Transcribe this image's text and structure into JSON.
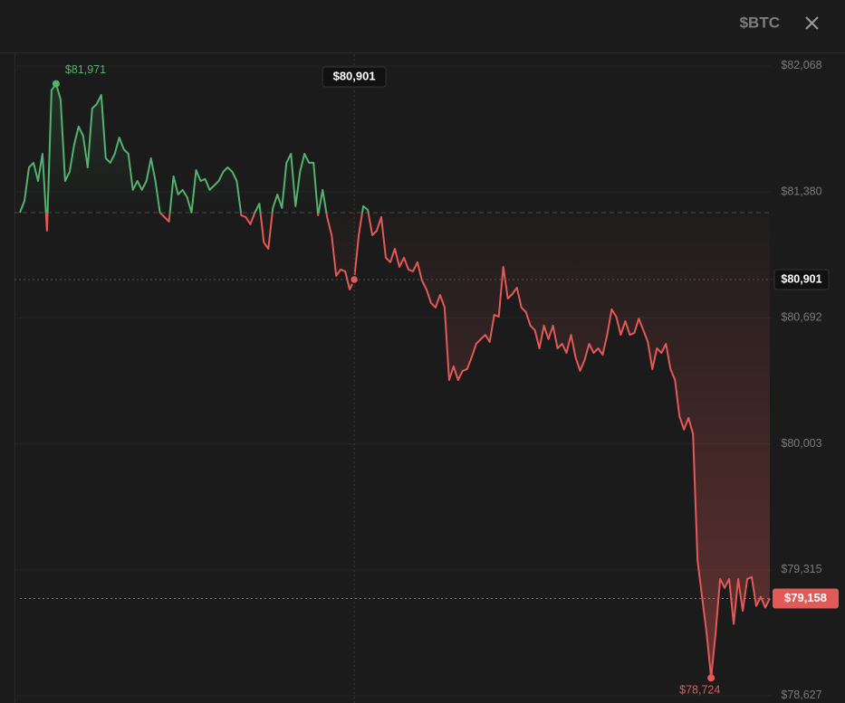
{
  "chart_data": {
    "type": "line",
    "title": "$BTC",
    "values": [
      81267,
      81331,
      81514,
      81539,
      81440,
      81588,
      81168,
      81935,
      81971,
      81885,
      81440,
      81490,
      81638,
      81737,
      81687,
      81514,
      81836,
      81860,
      81910,
      81564,
      81539,
      81588,
      81677,
      81613,
      81588,
      81391,
      81440,
      81391,
      81440,
      81564,
      81440,
      81267,
      81242,
      81218,
      81465,
      81366,
      81391,
      81351,
      81267,
      81499,
      81440,
      81450,
      81391,
      81415,
      81440,
      81490,
      81514,
      81490,
      81440,
      81252,
      81242,
      81203,
      81267,
      81316,
      81104,
      81069,
      81292,
      81366,
      81292,
      81539,
      81588,
      81302,
      81490,
      81588,
      81539,
      81539,
      81252,
      81391,
      81242,
      81143,
      80921,
      80956,
      80946,
      80847,
      80901,
      81143,
      81302,
      81282,
      81143,
      81168,
      81242,
      81020,
      80996,
      81069,
      80970,
      81020,
      80956,
      80946,
      80996,
      80896,
      80847,
      80773,
      80748,
      80817,
      80748,
      80352,
      80426,
      80352,
      80402,
      80412,
      80476,
      80550,
      80575,
      80599,
      80560,
      80708,
      80698,
      80970,
      80797,
      80822,
      80857,
      80748,
      80723,
      80649,
      80624,
      80525,
      80649,
      80575,
      80649,
      80525,
      80550,
      80500,
      80599,
      80476,
      80402,
      80461,
      80550,
      80500,
      80525,
      80490,
      80599,
      80738,
      80698,
      80599,
      80674,
      80599,
      80609,
      80688,
      80624,
      80560,
      80412,
      80525,
      80500,
      80550,
      80412,
      80352,
      80155,
      80081,
      80145,
      80056,
      79364,
      79167,
      78968,
      78724,
      78968,
      79265,
      79216,
      79265,
      79019,
      79265,
      79091,
      79265,
      79275,
      79117,
      79167,
      79108,
      79158
    ],
    "colors": {
      "up": "#52b26e",
      "down": "#e25a58"
    },
    "baseline": 81267,
    "ylim": [
      78587,
      82132
    ],
    "yticks": [
      {
        "value": 82068,
        "label": "$82,068"
      },
      {
        "value": 81380,
        "label": "$81,380"
      },
      {
        "value": 80692,
        "label": "$80,692"
      },
      {
        "value": 80003,
        "label": "$80,003"
      },
      {
        "value": 79315,
        "label": "$79,315"
      },
      {
        "value": 78627,
        "label": "$78,627"
      }
    ],
    "grid": true,
    "high": {
      "value": 81971,
      "label": "$81,971"
    },
    "low": {
      "value": 78724,
      "label": "$78,724"
    },
    "crosshair": {
      "value": 80901,
      "label": "$80,901"
    },
    "current": {
      "value": 79158,
      "label": "$79,158"
    }
  }
}
